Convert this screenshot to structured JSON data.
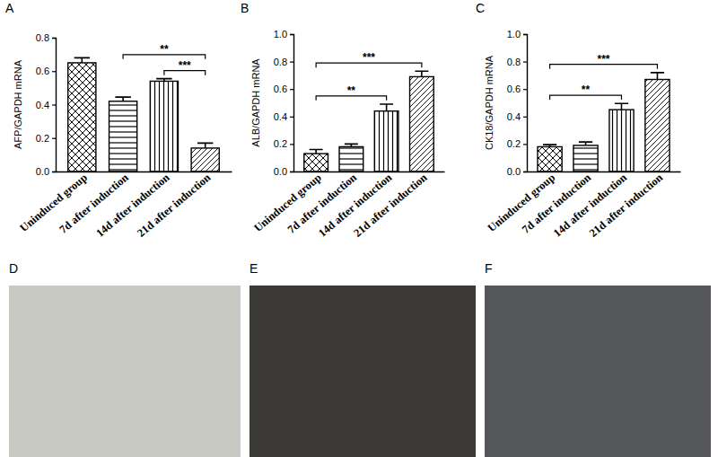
{
  "chart_data": [
    {
      "type": "bar",
      "title": "A",
      "y_label": "AFP/GAPDH mRNA",
      "categories": [
        "Uninduced group",
        "7d after induction",
        "14d after induction",
        "21d after induction"
      ],
      "values": [
        0.65,
        0.42,
        0.54,
        0.14
      ],
      "errors": [
        0.03,
        0.025,
        0.015,
        0.03
      ],
      "color": "#000000",
      "ylim": [
        0,
        0.8
      ],
      "yticks": [
        {
          "value": 0,
          "label": "0.0"
        },
        0.2,
        0.4,
        0.6,
        0.8
      ],
      "annotations": [
        {
          "from": "14d after induction",
          "to": "21d after induction",
          "label": "***"
        },
        {
          "from": "7d after induction",
          "to": "21d after induction",
          "label": "**"
        }
      ]
    },
    {
      "type": "bar",
      "title": "B",
      "y_label": "ALB/GAPDH mRNA",
      "categories": [
        "Uninduced group",
        "7d after induction",
        "14d after induction",
        "21d after induction"
      ],
      "values": [
        0.13,
        0.18,
        0.44,
        0.69
      ],
      "errors": [
        0.03,
        0.02,
        0.05,
        0.04
      ],
      "color": "#000000",
      "ylim": [
        0,
        1.0
      ],
      "yticks": [
        {
          "value": 0,
          "label": "0.0"
        },
        0.2,
        0.4,
        0.6,
        0.8,
        {
          "value": 1.0,
          "label": "1.0"
        }
      ],
      "annotations": [
        {
          "from": "Uninduced group",
          "to": "14d after induction",
          "label": "**"
        },
        {
          "from": "Uninduced group",
          "to": "21d after induction",
          "label": "***"
        }
      ]
    },
    {
      "type": "bar",
      "title": "C",
      "y_label": "CK18/GAPDH mRNA",
      "categories": [
        "Uninduced group",
        "7d after induction",
        "14d after induction",
        "21d after induction"
      ],
      "values": [
        0.18,
        0.19,
        0.45,
        0.67
      ],
      "errors": [
        0.015,
        0.025,
        0.045,
        0.05
      ],
      "color": "#000000",
      "ylim": [
        0,
        1.0
      ],
      "yticks": [
        {
          "value": 0,
          "label": "0.0"
        },
        0.2,
        0.4,
        0.6,
        0.8,
        {
          "value": 1.0,
          "label": "1.0"
        }
      ],
      "annotations": [
        {
          "from": "Uninduced group",
          "to": "14d after induction",
          "label": "**"
        },
        {
          "from": "Uninduced group",
          "to": "21d after induction",
          "label": "***"
        }
      ]
    }
  ],
  "images": [
    {
      "title": "D"
    },
    {
      "title": "E"
    },
    {
      "title": "F"
    }
  ]
}
